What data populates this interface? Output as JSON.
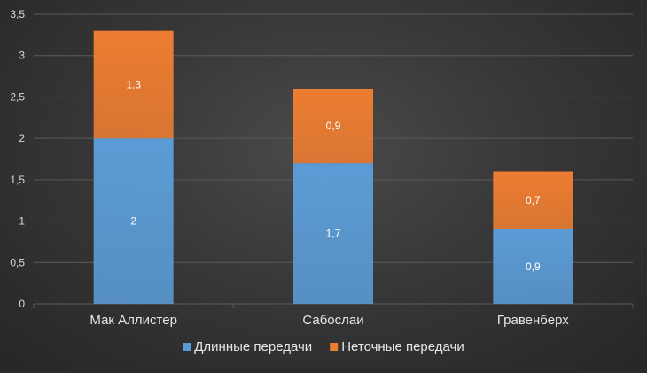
{
  "colors": {
    "background": "#383838",
    "grid": "#5a5a5a",
    "axis_text": "#d9d9d9",
    "series_1": "#5b9bd5",
    "series_2": "#ed7d31"
  },
  "chart_data": {
    "type": "bar",
    "stacked": true,
    "title": "",
    "xlabel": "",
    "ylabel": "",
    "categories": [
      "Мак Аллистер",
      "Сабослаи",
      "Гравенберх"
    ],
    "series": [
      {
        "name": "Длинные передачи",
        "values": [
          2,
          1.7,
          0.9
        ],
        "labels": [
          "2",
          "1,7",
          "0,9"
        ],
        "color": "#5b9bd5"
      },
      {
        "name": "Неточные передачи",
        "values": [
          1.3,
          0.9,
          0.7
        ],
        "labels": [
          "1,3",
          "0,9",
          "0,7"
        ],
        "color": "#ed7d31"
      }
    ],
    "ylim": [
      0,
      3.5
    ],
    "yticks": [
      0,
      0.5,
      1,
      1.5,
      2,
      2.5,
      3,
      3.5
    ],
    "ytick_labels": [
      "0",
      "0,5",
      "1",
      "1,5",
      "2",
      "2,5",
      "3",
      "3,5"
    ],
    "grid": true,
    "legend_position": "bottom"
  }
}
